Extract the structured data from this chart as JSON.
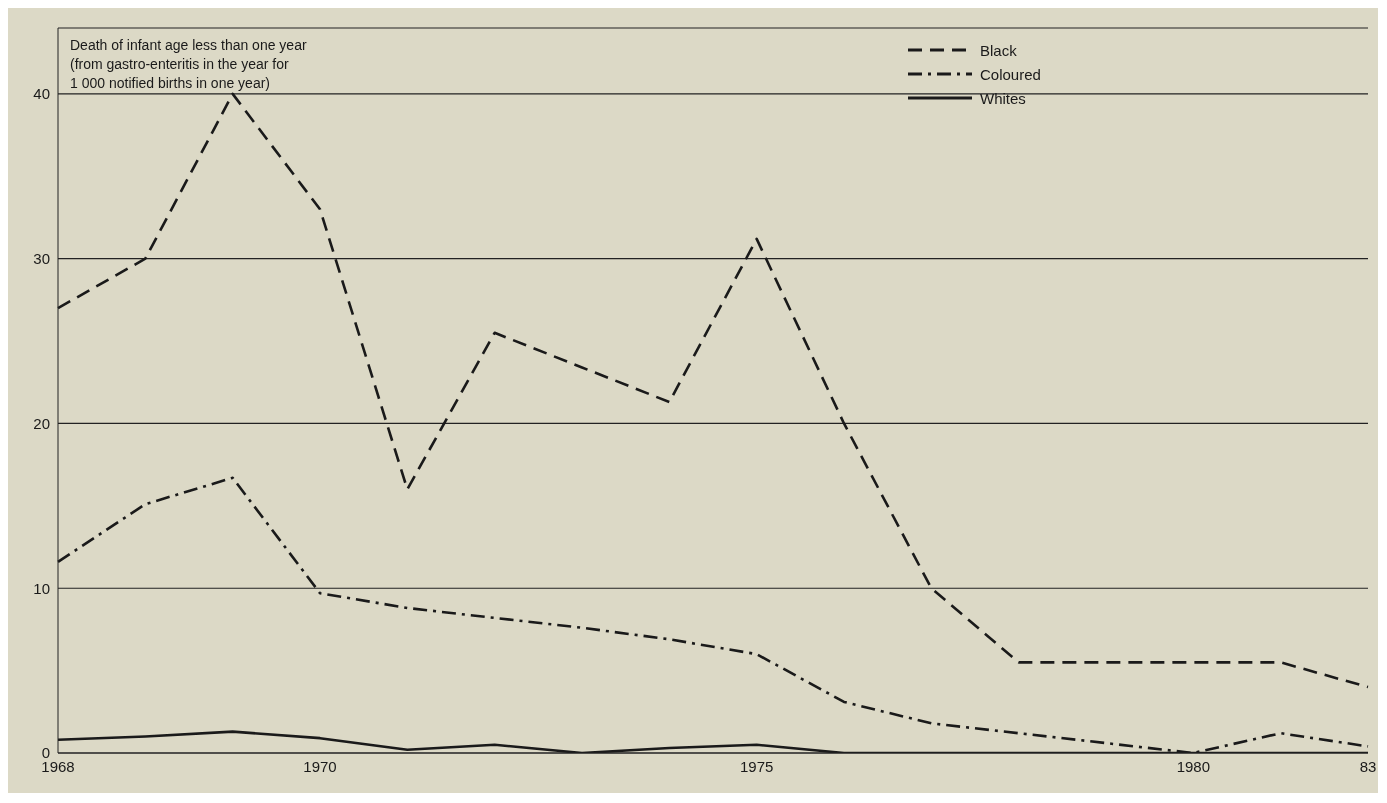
{
  "chart_data": {
    "type": "line",
    "ylabel": "Death of infant age less than one year\n(from gastro-enteritis in the year for\n1 000 notified births in one year)",
    "categories": [
      "1968",
      null,
      null,
      "1970",
      null,
      null,
      null,
      null,
      "1975",
      null,
      null,
      null,
      null,
      "1980",
      null,
      "83"
    ],
    "series": [
      {
        "name": "Black",
        "color": "#1a1a1a",
        "line_style": "dashed",
        "values": [
          27,
          30,
          40,
          33,
          16,
          25.5,
          23.4,
          21.3,
          31.2,
          20,
          10,
          5.5,
          5.5,
          5.5,
          5.5,
          4
        ]
      },
      {
        "name": "Coloured",
        "color": "#1a1a1a",
        "line_style": "dashdot",
        "values": [
          11.6,
          15.1,
          16.7,
          9.7,
          8.8,
          8.2,
          7.6,
          6.9,
          6,
          3.1,
          1.8,
          1.2,
          0.6,
          0,
          1.2,
          0.4
        ]
      },
      {
        "name": "Whites",
        "color": "#1a1a1a",
        "line_style": "solid",
        "values": [
          0.8,
          1,
          1.3,
          0.9,
          0.2,
          0.5,
          0,
          0.3,
          0.5,
          0,
          0,
          0,
          0,
          0,
          0,
          0
        ]
      }
    ],
    "ylim": [
      0,
      44
    ],
    "yticks": [
      0,
      10,
      20,
      30,
      40
    ],
    "grid": "y",
    "legend": "top right",
    "marker": "none"
  }
}
